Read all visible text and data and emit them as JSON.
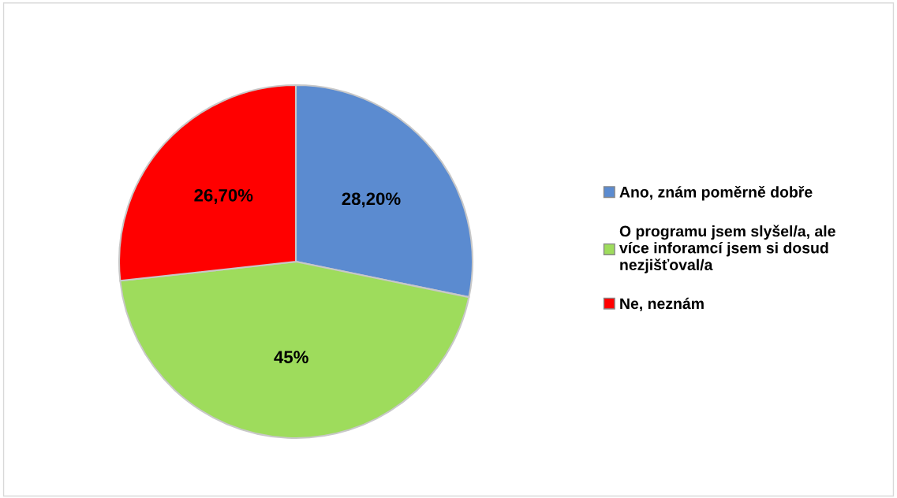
{
  "chart_data": {
    "type": "pie",
    "categories": [
      "Ano, znám poměrně dobře",
      "O programu jsem slyšel/a, ale více inforamcí jsem si dosud nezjišťoval/a",
      "Ne, neznám"
    ],
    "values": [
      28.2,
      45,
      26.7
    ],
    "value_labels": [
      "28,20%",
      "45%",
      "26,70%"
    ],
    "colors": [
      "#5b8bd0",
      "#9edc5c",
      "#ff0000"
    ],
    "legend": "right"
  }
}
